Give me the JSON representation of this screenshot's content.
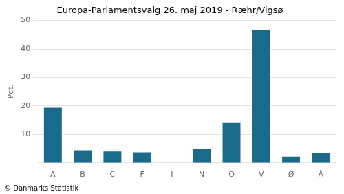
{
  "chart_data": {
    "type": "bar",
    "title": "Europa-Parlamentsvalg 26. maj 2019 - Ræhr/Vigsø",
    "ylabel": "Pct.",
    "footer": "© Danmarks Statistik",
    "categories": [
      "A",
      "B",
      "C",
      "F",
      "I",
      "N",
      "O",
      "V",
      "Ø",
      "Å"
    ],
    "values": [
      19.4,
      4.4,
      4.0,
      3.7,
      0.0,
      4.8,
      14.0,
      46.7,
      2.2,
      3.3
    ],
    "color": "#1a6b8a",
    "ylim": [
      0,
      50
    ],
    "yticks": [
      10,
      20,
      30,
      40,
      50
    ],
    "grid": true
  }
}
